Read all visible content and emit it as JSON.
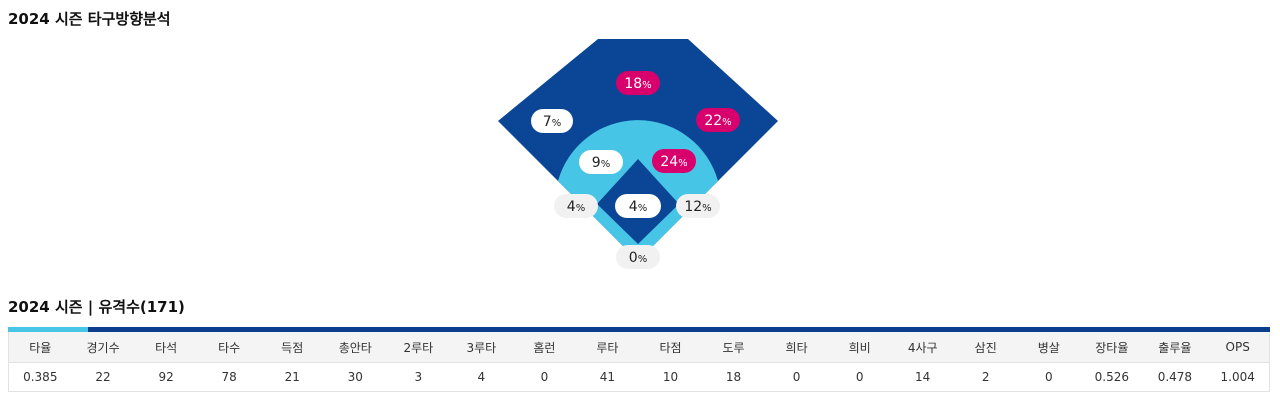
{
  "section1": {
    "title": "2024 시즌 타구방향분석"
  },
  "section2": {
    "title": "2024 시즌 | 유격수(171)"
  },
  "colors": {
    "outfield": "#0b4596",
    "infield_ring": "#47c5e6",
    "highlight_badge": "#d7006c",
    "normal_badge": "#ffffff",
    "outside_badge": "#f1f1f1"
  },
  "zones": [
    {
      "id": "center-field",
      "value": "18",
      "unit": "%",
      "highlight": true
    },
    {
      "id": "left-field",
      "value": "7",
      "unit": "%",
      "highlight": false
    },
    {
      "id": "right-field",
      "value": "22",
      "unit": "%",
      "highlight": true
    },
    {
      "id": "shortstop-area",
      "value": "9",
      "unit": "%",
      "highlight": false
    },
    {
      "id": "second-base-area",
      "value": "24",
      "unit": "%",
      "highlight": true
    },
    {
      "id": "third-base-line",
      "value": "4",
      "unit": "%",
      "highlight": false
    },
    {
      "id": "pitcher-area",
      "value": "4",
      "unit": "%",
      "highlight": false
    },
    {
      "id": "first-base-line",
      "value": "12",
      "unit": "%",
      "highlight": false
    },
    {
      "id": "catcher-area",
      "value": "0",
      "unit": "%",
      "highlight": false
    }
  ],
  "stats": {
    "headers": [
      "타율",
      "경기수",
      "타석",
      "타수",
      "득점",
      "총안타",
      "2루타",
      "3루타",
      "홈런",
      "루타",
      "타점",
      "도루",
      "희타",
      "희비",
      "4사구",
      "삼진",
      "병살",
      "장타율",
      "출루율",
      "OPS"
    ],
    "values": [
      "0.385",
      "22",
      "92",
      "78",
      "21",
      "30",
      "3",
      "4",
      "0",
      "41",
      "10",
      "18",
      "0",
      "0",
      "14",
      "2",
      "0",
      "0.526",
      "0.478",
      "1.004"
    ]
  }
}
